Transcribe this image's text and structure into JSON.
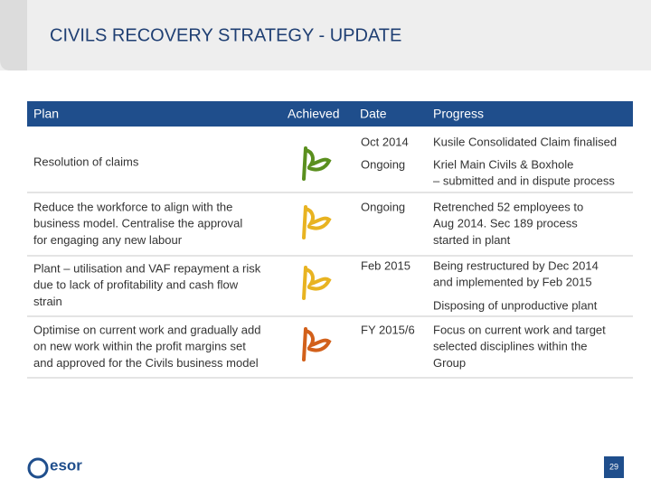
{
  "header": {
    "title": "CIVILS RECOVERY STRATEGY - UPDATE"
  },
  "table": {
    "columns": [
      "Plan",
      "Achieved",
      "Date",
      "Progress"
    ],
    "rows": [
      {
        "plan": [
          "Resolution of claims"
        ],
        "flag_color": "#5a8f1e",
        "entries": [
          {
            "date": "Oct 2014",
            "progress": [
              "Kusile Consolidated Claim finalised"
            ]
          },
          {
            "date": "Ongoing",
            "progress": [
              "Kriel Main Civils & Boxhole",
              "– submitted and in dispute process"
            ]
          }
        ]
      },
      {
        "plan": [
          "Reduce the workforce to align with the",
          "business model. Centralise the approval",
          "for engaging any new labour"
        ],
        "flag_color": "#e8b321",
        "entries": [
          {
            "date": "Ongoing",
            "progress": [
              "Retrenched 52 employees to",
              "Aug 2014. Sec 189 process",
              "started in plant"
            ]
          }
        ]
      },
      {
        "plan": [
          "Plant – utilisation and VAF repayment a risk",
          "due to lack of profitability and cash flow",
          "strain"
        ],
        "flag_color": "#e8b321",
        "entries": [
          {
            "date": "Feb 2015",
            "progress": [
              "Being restructured by Dec 2014",
              "and implemented by Feb 2015"
            ]
          },
          {
            "progress": [
              "Disposing of unproductive plant"
            ]
          }
        ]
      },
      {
        "plan": [
          "Optimise on current work and gradually add",
          "on new work within the profit margins set",
          "and approved for the Civils business model"
        ],
        "flag_color": "#d2601a",
        "entries": [
          {
            "date": "FY 2015/6",
            "progress": [
              "Focus on current work and target",
              "selected disciplines within the",
              "Group"
            ]
          }
        ]
      }
    ]
  },
  "footer": {
    "logo": "esor",
    "page": "29"
  }
}
